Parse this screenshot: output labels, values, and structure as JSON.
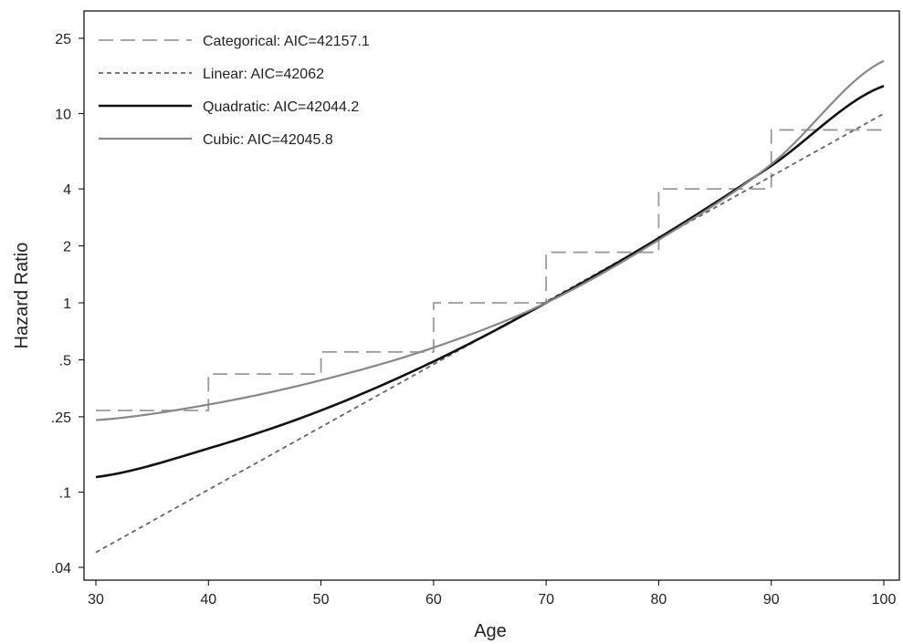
{
  "chart_data": {
    "type": "line",
    "title": "",
    "xlabel": "Age",
    "ylabel": "Hazard Ratio",
    "xlim": [
      30,
      100
    ],
    "ylim": [
      0.035,
      35
    ],
    "y_scale": "log",
    "grid": false,
    "legend_position": "top-left",
    "x_ticks": [
      30,
      40,
      50,
      60,
      70,
      80,
      90,
      100
    ],
    "y_ticks": [
      {
        "value": 0.04,
        "label": ".04"
      },
      {
        "value": 0.1,
        "label": ".1"
      },
      {
        "value": 0.25,
        "label": ".25"
      },
      {
        "value": 0.5,
        "label": ".5"
      },
      {
        "value": 1,
        "label": "1"
      },
      {
        "value": 2,
        "label": "2"
      },
      {
        "value": 4,
        "label": "4"
      },
      {
        "value": 10,
        "label": "10"
      },
      {
        "value": 25,
        "label": "25"
      }
    ],
    "series": [
      {
        "name": "Categorical: AIC=42157.1",
        "kind": "step",
        "color": "#999999",
        "dash": "dashed",
        "x": [
          30,
          40,
          50,
          60,
          70,
          80,
          90,
          100
        ],
        "y": [
          0.27,
          0.42,
          0.55,
          1.0,
          1.85,
          4.0,
          8.2,
          8.2
        ]
      },
      {
        "name": "Linear: AIC=42062",
        "kind": "line",
        "color": "#666666",
        "dash": "dotted",
        "x": [
          30,
          40,
          50,
          60,
          70,
          80,
          90,
          100
        ],
        "y": [
          0.048,
          0.1,
          0.215,
          0.464,
          1.0,
          2.15,
          4.64,
          10.0
        ]
      },
      {
        "name": "Quadratic: AIC=42044.2",
        "kind": "line",
        "color": "#111111",
        "dash": "solid",
        "x": [
          30,
          40,
          50,
          60,
          70,
          80,
          90,
          100
        ],
        "y": [
          0.12,
          0.17,
          0.27,
          0.49,
          1.0,
          2.2,
          5.3,
          14.0
        ]
      },
      {
        "name": "Cubic: AIC=42045.8",
        "kind": "line",
        "color": "#888888",
        "dash": "solid",
        "x": [
          30,
          40,
          50,
          60,
          70,
          80,
          90,
          100
        ],
        "y": [
          0.24,
          0.29,
          0.39,
          0.58,
          1.0,
          2.15,
          5.4,
          19.0
        ]
      }
    ]
  }
}
